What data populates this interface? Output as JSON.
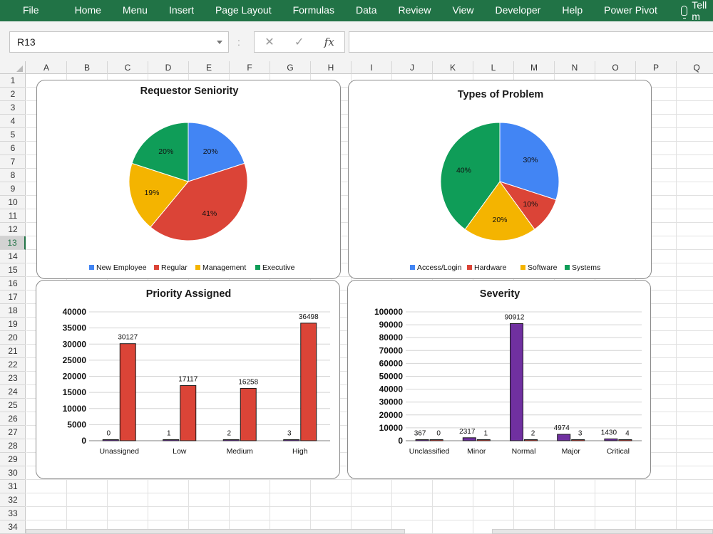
{
  "ribbon": {
    "tabs": [
      "File",
      "Home",
      "Menu",
      "Insert",
      "Page Layout",
      "Formulas",
      "Data",
      "Review",
      "View",
      "Developer",
      "Help",
      "Power Pivot"
    ],
    "tell_me": "Tell m"
  },
  "formula_bar": {
    "name_box": "R13",
    "separator": ":",
    "cancel": "✕",
    "enter": "✓",
    "fx": "fx",
    "value": ""
  },
  "columns": [
    "A",
    "B",
    "C",
    "D",
    "E",
    "F",
    "G",
    "H",
    "I",
    "J",
    "K",
    "L",
    "M",
    "N",
    "O",
    "P",
    "Q"
  ],
  "rows": [
    "1",
    "2",
    "3",
    "4",
    "5",
    "6",
    "7",
    "8",
    "9",
    "10",
    "11",
    "12",
    "13",
    "14",
    "15",
    "16",
    "17",
    "18",
    "19",
    "20",
    "21",
    "22",
    "23",
    "24",
    "25",
    "26",
    "27",
    "28",
    "29",
    "30",
    "31",
    "32",
    "33",
    "34"
  ],
  "active_row": "13",
  "colors": {
    "excel_green": "#217346",
    "blue": "#4285F4",
    "red": "#DB4437",
    "yellow": "#F4B400",
    "green": "#0F9D58",
    "purple": "#7030A0"
  },
  "chart_data": [
    {
      "type": "pie",
      "title": "Requestor Seniority",
      "categories": [
        "New Employee",
        "Regular",
        "Management",
        "Executive"
      ],
      "values": [
        20,
        41,
        19,
        20
      ],
      "labels": [
        "20%",
        "41%",
        "19%",
        "20%"
      ],
      "colors": [
        "#4285F4",
        "#DB4437",
        "#F4B400",
        "#0F9D58"
      ],
      "legend": "bottom"
    },
    {
      "type": "pie",
      "title": "Types of Problem",
      "categories": [
        "Access/Login",
        "Hardware",
        "Software",
        "Systems"
      ],
      "values": [
        30,
        10,
        20,
        40
      ],
      "labels": [
        "30%",
        "10%",
        "20%",
        "40%"
      ],
      "colors": [
        "#4285F4",
        "#DB4437",
        "#F4B400",
        "#0F9D58"
      ],
      "legend": "bottom"
    },
    {
      "type": "bar",
      "title": "Priority Assigned",
      "categories": [
        "Unassigned",
        "Low",
        "Medium",
        "High"
      ],
      "series": [
        {
          "values": [
            0,
            1,
            2,
            3
          ],
          "color": "#7030A0"
        },
        {
          "values": [
            30127,
            17117,
            16258,
            36498
          ],
          "color": "#DB4437"
        }
      ],
      "ylim": [
        0,
        40000
      ],
      "yticks": [
        0,
        5000,
        10000,
        15000,
        20000,
        25000,
        30000,
        35000,
        40000
      ],
      "grid": true
    },
    {
      "type": "bar",
      "title": "Severity",
      "categories": [
        "Unclassified",
        "Minor",
        "Normal",
        "Major",
        "Critical"
      ],
      "series": [
        {
          "values": [
            367,
            2317,
            90912,
            4974,
            1430
          ],
          "color": "#7030A0"
        },
        {
          "values": [
            0,
            1,
            2,
            3,
            4
          ],
          "color": "#DB4437"
        }
      ],
      "ylim": [
        0,
        100000
      ],
      "yticks": [
        0,
        10000,
        20000,
        30000,
        40000,
        50000,
        60000,
        70000,
        80000,
        90000,
        100000
      ],
      "grid": true
    }
  ]
}
